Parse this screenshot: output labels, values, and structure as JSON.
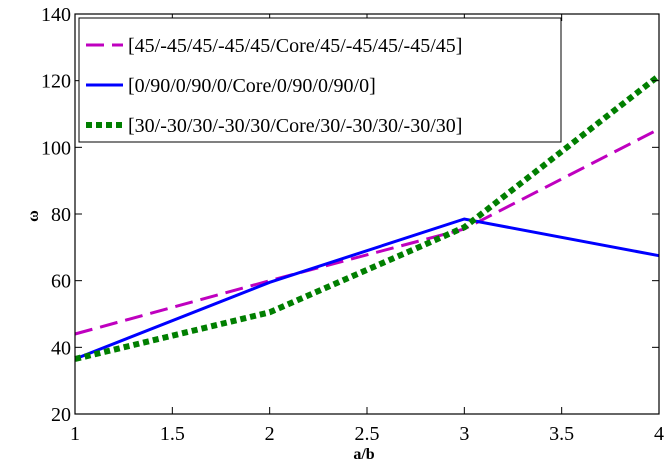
{
  "chart_data": {
    "type": "line",
    "xlabel": "a/b",
    "ylabel": "ω",
    "xlim": [
      1,
      4
    ],
    "ylim": [
      20,
      140
    ],
    "x_ticks": [
      "1",
      "1.5",
      "2",
      "2.5",
      "3",
      "3.5",
      "4"
    ],
    "y_ticks": [
      "20",
      "40",
      "60",
      "80",
      "100",
      "120",
      "140"
    ],
    "grid": false,
    "legend_position": "top-left",
    "series": [
      {
        "name": "[45/-45/45/-45/45/Core/45/-45/45/-45/45]",
        "color": "#bf00bf",
        "style": "dashed",
        "x": [
          1,
          2,
          3,
          4
        ],
        "y": [
          44,
          60,
          75.5,
          105.5
        ]
      },
      {
        "name": "[0/90/0/90/0/Core/0/90/0/90/0]",
        "color": "#0000ff",
        "style": "solid",
        "x": [
          1,
          2,
          3,
          4
        ],
        "y": [
          36.5,
          59.5,
          78.5,
          67.5
        ]
      },
      {
        "name": "[30/-30/30/-30/30/Core/30/-30/30/-30/30]",
        "color": "#007f00",
        "style": "dotted",
        "x": [
          1,
          2,
          3,
          4
        ],
        "y": [
          36.5,
          50.5,
          76,
          121.5
        ]
      }
    ]
  }
}
